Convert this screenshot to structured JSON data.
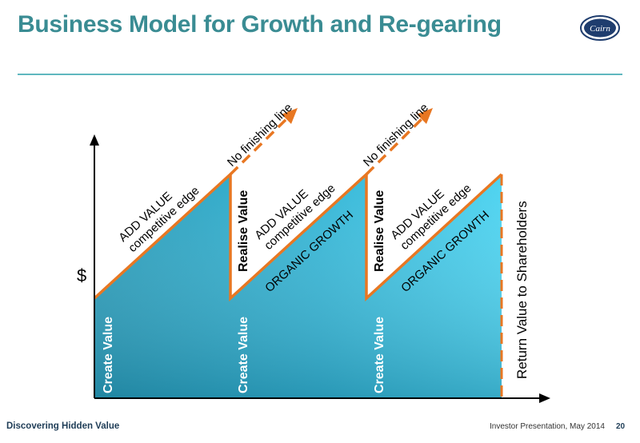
{
  "header": {
    "title": "Business Model for Growth and Re-gearing",
    "logo_text": "Cairn"
  },
  "diagram": {
    "y_axis_label": "$",
    "create_value": "Create Value",
    "realise_value": "Realise Value",
    "add_value": "ADD VALUE",
    "competitive_edge": "competitive edge",
    "organic_growth": "ORGANIC GROWTH",
    "no_finishing_line": "No finishing line",
    "return_value": "Return Value to Shareholders",
    "colors": {
      "accent": "#e87722",
      "fill_light": "#4dd3f0",
      "fill_dark": "#2a9bb8",
      "title": "#3a8c93"
    }
  },
  "footer": {
    "left": "Discovering Hidden Value",
    "right": "Investor Presentation, May 2014",
    "page": "20"
  }
}
